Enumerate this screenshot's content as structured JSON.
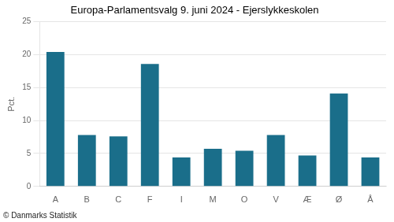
{
  "chart_data": {
    "type": "bar",
    "title": "Europa-Parlamentsvalg 9. juni 2024 - Ejerslykkeskolen",
    "categories": [
      "A",
      "B",
      "C",
      "F",
      "I",
      "M",
      "O",
      "V",
      "Æ",
      "Ø",
      "Å"
    ],
    "values": [
      20.4,
      7.8,
      7.6,
      18.6,
      4.4,
      5.7,
      5.4,
      7.8,
      4.7,
      14.1,
      4.4
    ],
    "color": "#1a6e8a",
    "ylabel": "Pct.",
    "ylim": [
      0,
      25
    ],
    "yticks": [
      0,
      5,
      10,
      15,
      20,
      25
    ],
    "grid": true,
    "footnote": "© Danmarks Statistik"
  }
}
